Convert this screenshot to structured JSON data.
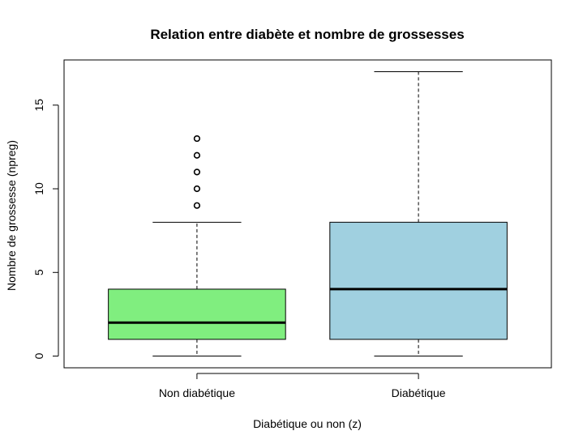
{
  "chart_data": {
    "type": "boxplot",
    "title": "Relation entre diabète et nombre de grossesses",
    "xlabel": "Diabétique ou non (z)",
    "ylabel": "Nombre de grossesse (npreg)",
    "ylim": [
      -0.7,
      17.7
    ],
    "yticks": [
      0,
      5,
      10,
      15
    ],
    "categories": [
      "Non diabétique",
      "Diabétique"
    ],
    "boxes": [
      {
        "category": "Non diabétique",
        "color": "#80ee7f",
        "whisker_low": 0,
        "q1": 1,
        "median": 2,
        "q3": 4,
        "whisker_high": 8,
        "outliers": [
          9,
          10,
          11,
          12,
          13
        ]
      },
      {
        "category": "Diabétique",
        "color": "#a0d0e0",
        "whisker_low": 0,
        "q1": 1,
        "median": 4,
        "q3": 8,
        "whisker_high": 17,
        "outliers": []
      }
    ],
    "grid": false,
    "legend": "none"
  }
}
